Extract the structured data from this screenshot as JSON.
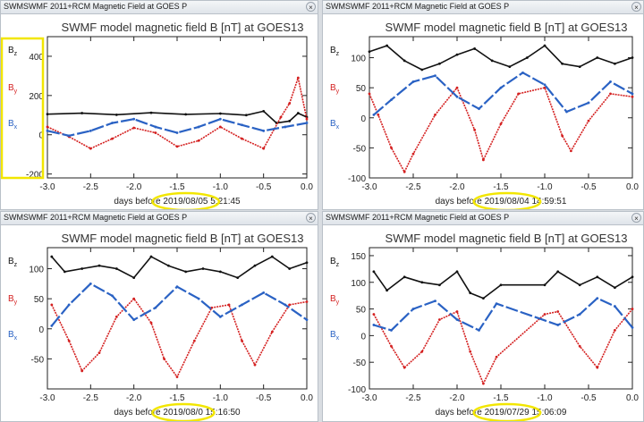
{
  "panels": [
    {
      "window_title": "SWMSWMF 2011+RCM Magnetic Field at GOES P",
      "close_glyph": "×",
      "plot_title": "SWMF model magnetic field B [nT] at GOES13",
      "xlabel_prefix": "days before",
      "date": "2019/08/05",
      "time": "5:21:45",
      "legend": [
        "Bz",
        "By",
        "Bx"
      ]
    },
    {
      "window_title": "SWMSWMF 2011+RCM Magnetic Field at GOES P",
      "close_glyph": "×",
      "plot_title": "SWMF model magnetic field B [nT] at GOES13",
      "xlabel_prefix": "days before",
      "date": "2019/08/04",
      "time": "14:59:51",
      "legend": [
        "Bz",
        "By",
        "Bx"
      ]
    },
    {
      "window_title": "SWMSWMF 2011+RCM Magnetic Field at GOES P",
      "close_glyph": "×",
      "plot_title": "SWMF model magnetic field B [nT] at GOES13",
      "xlabel_prefix": "days before",
      "date": "2019/08/0",
      "time": "15:16:50",
      "legend": [
        "Bz",
        "By",
        "Bx"
      ]
    },
    {
      "window_title": "SWMSWMF 2011+RCM Magnetic Field at GOES P",
      "close_glyph": "×",
      "plot_title": "SWMF model magnetic field B [nT] at GOES13",
      "xlabel_prefix": "days before",
      "date": "2019/07/29",
      "time": "15:06:09",
      "legend": [
        "Bz",
        "By",
        "Bx"
      ]
    }
  ],
  "colors": {
    "bz": "#111111",
    "by": "#d42020",
    "bx": "#2a62c4",
    "highlight": "#f2e600"
  },
  "chart_data": [
    {
      "type": "scatter",
      "title": "SWMF model magnetic field B [nT] at GOES13",
      "xlabel": "days before 2019/08/05 5:21:45",
      "xlim": [
        -3.0,
        0.0
      ],
      "ylim": [
        -220,
        500
      ],
      "xticks": [
        "-3.0",
        "-2.5",
        "-2.0",
        "-1.5",
        "-1.0",
        "-0.5",
        "0.0"
      ],
      "yticks": [
        "-200",
        "0",
        "200",
        "400"
      ],
      "ytick_values": [
        -200,
        0,
        200,
        400
      ],
      "series": [
        {
          "name": "Bz",
          "x": [
            -3.0,
            -2.6,
            -2.2,
            -1.8,
            -1.4,
            -1.0,
            -0.7,
            -0.5,
            -0.35,
            -0.2,
            -0.1,
            0.0
          ],
          "values": [
            105,
            110,
            102,
            112,
            104,
            108,
            100,
            120,
            60,
            70,
            110,
            90
          ]
        },
        {
          "name": "By",
          "x": [
            -3.0,
            -2.75,
            -2.5,
            -2.25,
            -2.0,
            -1.75,
            -1.5,
            -1.25,
            -1.0,
            -0.75,
            -0.5,
            -0.3,
            -0.2,
            -0.1,
            0.0
          ],
          "values": [
            40,
            -10,
            -70,
            -20,
            35,
            10,
            -60,
            -30,
            40,
            -20,
            -70,
            90,
            160,
            290,
            80
          ]
        },
        {
          "name": "Bx",
          "x": [
            -3.0,
            -2.75,
            -2.5,
            -2.25,
            -2.0,
            -1.75,
            -1.5,
            -1.25,
            -1.0,
            -0.75,
            -0.5,
            -0.25,
            0.0
          ],
          "values": [
            20,
            -5,
            20,
            60,
            80,
            40,
            10,
            40,
            80,
            50,
            20,
            40,
            60
          ]
        }
      ]
    },
    {
      "type": "scatter",
      "title": "SWMF model magnetic field B [nT] at GOES13",
      "xlabel": "days before 2019/08/04 14:59:51",
      "xlim": [
        -3.0,
        0.0
      ],
      "ylim": [
        -100,
        135
      ],
      "xticks": [
        "-3.0",
        "-2.5",
        "-2.0",
        "-1.5",
        "-1.0",
        "-0.5",
        "0.0"
      ],
      "yticks": [
        "-100",
        "-50",
        "0",
        "50",
        "100"
      ],
      "ytick_values": [
        -100,
        -50,
        0,
        50,
        100
      ],
      "series": [
        {
          "name": "Bz",
          "x": [
            -3.0,
            -2.8,
            -2.6,
            -2.4,
            -2.2,
            -2.0,
            -1.8,
            -1.6,
            -1.4,
            -1.2,
            -1.0,
            -0.8,
            -0.6,
            -0.4,
            -0.2,
            0.0
          ],
          "values": [
            110,
            120,
            95,
            80,
            90,
            105,
            115,
            95,
            85,
            100,
            120,
            90,
            85,
            100,
            90,
            100
          ]
        },
        {
          "name": "By",
          "x": [
            -3.0,
            -2.9,
            -2.75,
            -2.6,
            -2.5,
            -2.25,
            -2.0,
            -1.8,
            -1.7,
            -1.5,
            -1.3,
            -1.0,
            -0.8,
            -0.7,
            -0.5,
            -0.25,
            0.0
          ],
          "values": [
            40,
            5,
            -50,
            -90,
            -60,
            5,
            50,
            -20,
            -70,
            -10,
            40,
            50,
            -30,
            -55,
            -5,
            40,
            35
          ]
        },
        {
          "name": "Bx",
          "x": [
            -2.95,
            -2.75,
            -2.5,
            -2.25,
            -2.0,
            -1.75,
            -1.5,
            -1.25,
            -1.0,
            -0.75,
            -0.5,
            -0.25,
            0.0
          ],
          "values": [
            5,
            30,
            60,
            70,
            35,
            15,
            50,
            75,
            55,
            10,
            25,
            60,
            40
          ]
        }
      ]
    },
    {
      "type": "scatter",
      "title": "SWMF model magnetic field B [nT] at GOES13",
      "xlabel": "days before 2019/08/0 15:16:50",
      "xlim": [
        -3.0,
        0.0
      ],
      "ylim": [
        -100,
        135
      ],
      "xticks": [
        "-3.0",
        "-2.5",
        "-2.0",
        "-1.5",
        "-1.0",
        "-0.5",
        "0.0"
      ],
      "yticks": [
        "-50",
        "0",
        "50",
        "100"
      ],
      "ytick_values": [
        -50,
        0,
        50,
        100
      ],
      "series": [
        {
          "name": "Bz",
          "x": [
            -2.95,
            -2.8,
            -2.6,
            -2.4,
            -2.2,
            -2.0,
            -1.8,
            -1.6,
            -1.4,
            -1.2,
            -1.0,
            -0.8,
            -0.6,
            -0.4,
            -0.2,
            0.0
          ],
          "values": [
            120,
            95,
            100,
            105,
            100,
            85,
            120,
            105,
            95,
            100,
            95,
            85,
            105,
            120,
            100,
            110
          ]
        },
        {
          "name": "By",
          "x": [
            -2.95,
            -2.75,
            -2.6,
            -2.4,
            -2.2,
            -2.0,
            -1.8,
            -1.65,
            -1.5,
            -1.3,
            -1.1,
            -0.9,
            -0.75,
            -0.6,
            -0.4,
            -0.2,
            0.0
          ],
          "values": [
            40,
            -20,
            -70,
            -40,
            20,
            50,
            10,
            -50,
            -80,
            -20,
            35,
            40,
            -20,
            -60,
            -5,
            40,
            45
          ]
        },
        {
          "name": "Bx",
          "x": [
            -2.95,
            -2.75,
            -2.5,
            -2.25,
            -2.0,
            -1.75,
            -1.5,
            -1.25,
            -1.0,
            -0.75,
            -0.5,
            -0.25,
            0.0
          ],
          "values": [
            5,
            40,
            75,
            55,
            15,
            35,
            70,
            50,
            20,
            40,
            60,
            40,
            15
          ]
        }
      ]
    },
    {
      "type": "scatter",
      "title": "SWMF model magnetic field B [nT] at GOES13",
      "xlabel": "days before 2019/07/29 15:06:09",
      "xlim": [
        -3.0,
        0.0
      ],
      "ylim": [
        -100,
        165
      ],
      "xticks": [
        "-3.0",
        "-2.5",
        "-2.0",
        "-1.5",
        "-1.0",
        "-0.5",
        "0.0"
      ],
      "yticks": [
        "-100",
        "-50",
        "0",
        "50",
        "100",
        "150"
      ],
      "ytick_values": [
        -100,
        -50,
        0,
        50,
        100,
        150
      ],
      "series": [
        {
          "name": "Bz",
          "x": [
            -2.95,
            -2.8,
            -2.6,
            -2.4,
            -2.2,
            -2.0,
            -1.85,
            -1.7,
            -1.5,
            -1.0,
            -0.85,
            -0.6,
            -0.4,
            -0.2,
            0.0
          ],
          "values": [
            120,
            85,
            110,
            100,
            95,
            120,
            80,
            70,
            95,
            95,
            120,
            95,
            110,
            90,
            110
          ]
        },
        {
          "name": "By",
          "x": [
            -2.95,
            -2.75,
            -2.6,
            -2.4,
            -2.2,
            -2.0,
            -1.85,
            -1.7,
            -1.55,
            -1.0,
            -0.85,
            -0.6,
            -0.4,
            -0.2,
            0.0
          ],
          "values": [
            40,
            -20,
            -60,
            -30,
            30,
            45,
            -30,
            -90,
            -40,
            40,
            45,
            -20,
            -60,
            10,
            50
          ]
        },
        {
          "name": "Bx",
          "x": [
            -2.95,
            -2.75,
            -2.5,
            -2.25,
            -2.0,
            -1.75,
            -1.55,
            -0.85,
            -0.6,
            -0.4,
            -0.2,
            0.0
          ],
          "values": [
            20,
            10,
            50,
            65,
            30,
            10,
            60,
            20,
            40,
            70,
            55,
            15
          ]
        }
      ]
    }
  ]
}
